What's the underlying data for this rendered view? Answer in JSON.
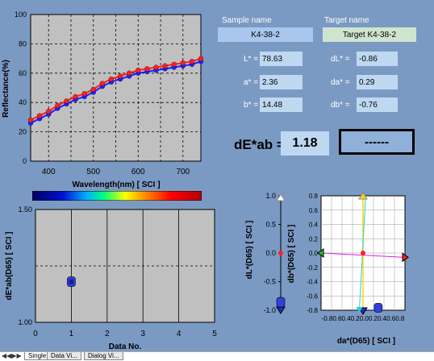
{
  "spectrum_chart": {
    "ylabel": "Reflectance(%)",
    "xlabel": "Wavelength(nm) [ SCI ]",
    "y_ticks": [
      "0",
      "20",
      "40",
      "60",
      "80",
      "100"
    ],
    "x_ticks": [
      "400",
      "500",
      "600",
      "700"
    ]
  },
  "sample": {
    "header": "Sample name",
    "name": "K4-38-2",
    "L_label": "L* =",
    "L_value": "78.63",
    "a_label": "a* =",
    "a_value": "2.36",
    "b_label": "b* =",
    "b_value": "14.48"
  },
  "target": {
    "header": "Target name",
    "name": "Target K4-38-2",
    "dL_label": "dL* =",
    "dL_value": "-0.86",
    "da_label": "da* =",
    "da_value": "0.29",
    "db_label": "db* =",
    "db_value": "-0.76"
  },
  "dE": {
    "label": "dE*ab =",
    "value": "1.18",
    "judgement": "------"
  },
  "de_chart": {
    "ylabel": "dE*ab(D65) [ SCI ]",
    "xlabel": "Data No.",
    "y_ticks": [
      "1.00",
      "1.50"
    ],
    "x_ticks": [
      "0",
      "1",
      "2",
      "3",
      "4",
      "5"
    ]
  },
  "dl_chart": {
    "ylabel": "dL*(D65) [ SCI ]",
    "y_ticks": [
      "1.0",
      "0.5",
      "0.0",
      "-0.5",
      "-1.0"
    ]
  },
  "dadb_chart": {
    "ylabel": "db*(D65) [ SCI ]",
    "xlabel": "da*(D65) [ SCI ]",
    "y_ticks": [
      "0.8",
      "0.6",
      "0.4",
      "0.2",
      "0.0",
      "-0.2",
      "-0.4",
      "-0.6",
      "-0.8"
    ],
    "x_tick_text": "-0.80.60.40.20.00.20.40.60.8"
  },
  "chart_data": [
    {
      "type": "line",
      "xlabel": "Wavelength(nm) [ SCI ]",
      "ylabel": "Reflectance(%)",
      "xlim": [
        360,
        740
      ],
      "ylim": [
        0,
        100
      ],
      "grid": true,
      "x": [
        360,
        380,
        400,
        420,
        440,
        460,
        480,
        500,
        520,
        540,
        560,
        580,
        600,
        620,
        640,
        660,
        680,
        700,
        720,
        740
      ],
      "series": [
        {
          "color": "#ff2020",
          "values": [
            28,
            31,
            34,
            38,
            41,
            44,
            46,
            49,
            53,
            56,
            58,
            60,
            62,
            63,
            64,
            65,
            66,
            67,
            68,
            70
          ]
        },
        {
          "color": "#2020ff",
          "values": [
            26,
            29,
            32,
            36,
            39,
            42,
            44,
            47,
            51,
            54,
            56,
            58,
            60,
            61,
            62,
            63,
            64,
            65,
            66,
            68
          ]
        }
      ]
    },
    {
      "type": "scatter",
      "xlabel": "Data No.",
      "ylabel": "dE*ab(D65) [ SCI ]",
      "xlim": [
        0,
        5
      ],
      "ylim": [
        1.0,
        1.5
      ],
      "points": [
        {
          "x": 1,
          "y": 1.18
        }
      ]
    },
    {
      "type": "scatter",
      "ylabel": "dL*(D65) [ SCI ]",
      "ylim": [
        -1.0,
        1.0
      ],
      "points": [
        {
          "y": -0.86
        }
      ]
    },
    {
      "type": "scatter",
      "xlabel": "da*(D65) [ SCI ]",
      "ylabel": "db*(D65) [ SCI ]",
      "xlim": [
        -0.8,
        0.8
      ],
      "ylim": [
        -0.8,
        0.8
      ],
      "points": [
        {
          "x": 0.29,
          "y": -0.76
        }
      ]
    }
  ],
  "tabs": [
    "Single",
    "Data Vi...",
    "Dialog Vi..."
  ]
}
